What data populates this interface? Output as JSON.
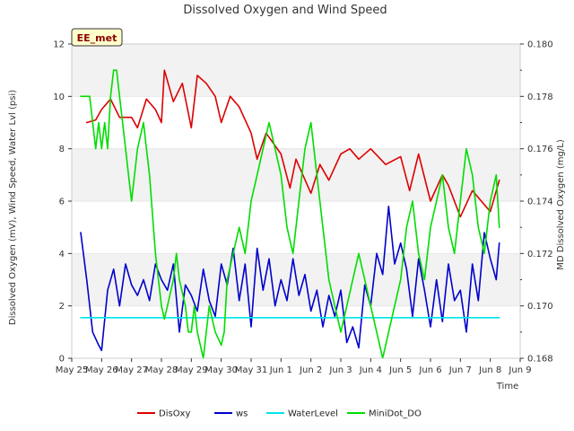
{
  "chart_data": {
    "type": "line",
    "title": "Dissolved Oxygen and Wind Speed",
    "xlabel": "Time",
    "ylabel_left": "Dissolved Oxygen (mV), Wind Speed, Water Lvl (psi)",
    "ylabel_right": "MD Dissolved Oxygen (mg/L)",
    "badge": "EE_met",
    "xlim": [
      0,
      15
    ],
    "x_tick_values": [
      0,
      1,
      2,
      3,
      4,
      5,
      6,
      7,
      8,
      9,
      10,
      11,
      12,
      13,
      14,
      15
    ],
    "x_tick_labels": [
      "May 25",
      "May 26",
      "May 27",
      "May 28",
      "May 29",
      "May 30",
      "May 31",
      "Jun 1",
      "Jun 2",
      "Jun 3",
      "Jun 4",
      "Jun 5",
      "Jun 6",
      "Jun 7",
      "Jun 8",
      "Jun 9"
    ],
    "ylim_left": [
      0,
      12
    ],
    "y_ticks_left": [
      "0",
      "2",
      "4",
      "6",
      "8",
      "10",
      "12"
    ],
    "ylim_right": [
      0.168,
      0.18
    ],
    "y_ticks_right": [
      "0.168",
      "0.170",
      "0.172",
      "0.174",
      "0.176",
      "0.178",
      "0.180"
    ],
    "bands": [
      [
        2,
        4
      ],
      [
        6,
        8
      ],
      [
        10,
        12
      ]
    ],
    "legend_placement": "bottom",
    "series": [
      {
        "name": "DisOxy",
        "color": "#dd0000",
        "axis": "left",
        "x": [
          0.5,
          0.8,
          1.0,
          1.3,
          1.6,
          2.0,
          2.2,
          2.5,
          2.8,
          3.0,
          3.1,
          3.4,
          3.7,
          4.0,
          4.2,
          4.5,
          4.8,
          5.0,
          5.3,
          5.6,
          6.0,
          6.2,
          6.5,
          7.0,
          7.3,
          7.5,
          8.0,
          8.3,
          8.6,
          9.0,
          9.3,
          9.6,
          10.0,
          10.5,
          11.0,
          11.3,
          11.6,
          12.0,
          12.4,
          12.6,
          13.0,
          13.4,
          13.7,
          14.0,
          14.3
        ],
        "y": [
          9.0,
          9.1,
          9.5,
          9.9,
          9.2,
          9.2,
          8.8,
          9.9,
          9.5,
          9.0,
          11.0,
          9.8,
          10.5,
          8.8,
          10.8,
          10.5,
          10.0,
          9.0,
          10.0,
          9.6,
          8.6,
          7.6,
          8.6,
          7.8,
          6.5,
          7.6,
          6.3,
          7.4,
          6.8,
          7.8,
          8.0,
          7.6,
          8.0,
          7.4,
          7.7,
          6.4,
          7.8,
          6.0,
          7.0,
          6.6,
          5.4,
          6.4,
          6.0,
          5.6,
          6.8
        ]
      },
      {
        "name": "ws",
        "color": "#0000cc",
        "axis": "left",
        "x": [
          0.3,
          0.5,
          0.7,
          0.9,
          1.0,
          1.2,
          1.4,
          1.6,
          1.8,
          2.0,
          2.2,
          2.4,
          2.6,
          2.8,
          3.0,
          3.2,
          3.4,
          3.6,
          3.8,
          4.0,
          4.2,
          4.4,
          4.6,
          4.8,
          5.0,
          5.2,
          5.4,
          5.6,
          5.8,
          6.0,
          6.2,
          6.4,
          6.6,
          6.8,
          7.0,
          7.2,
          7.4,
          7.6,
          7.8,
          8.0,
          8.2,
          8.4,
          8.6,
          8.8,
          9.0,
          9.2,
          9.4,
          9.6,
          9.8,
          10.0,
          10.2,
          10.4,
          10.6,
          10.8,
          11.0,
          11.2,
          11.4,
          11.6,
          11.8,
          12.0,
          12.2,
          12.4,
          12.6,
          12.8,
          13.0,
          13.2,
          13.4,
          13.6,
          13.8,
          14.0,
          14.2,
          14.3
        ],
        "y": [
          4.8,
          3.0,
          1.0,
          0.5,
          0.3,
          2.6,
          3.4,
          2.0,
          3.6,
          2.8,
          2.4,
          3.0,
          2.2,
          3.6,
          3.0,
          2.6,
          3.6,
          1.0,
          2.8,
          2.4,
          1.8,
          3.4,
          2.2,
          1.6,
          3.6,
          2.8,
          4.2,
          2.2,
          3.6,
          1.2,
          4.2,
          2.6,
          3.8,
          2.0,
          3.0,
          2.2,
          3.8,
          2.4,
          3.2,
          1.8,
          2.6,
          1.2,
          2.4,
          1.6,
          2.6,
          0.6,
          1.2,
          0.4,
          2.8,
          2.0,
          4.0,
          3.2,
          5.8,
          3.6,
          4.4,
          3.4,
          1.6,
          3.8,
          2.6,
          1.2,
          3.0,
          1.4,
          3.6,
          2.2,
          2.6,
          1.0,
          3.6,
          2.2,
          4.8,
          3.8,
          3.0,
          4.4
        ]
      },
      {
        "name": "WaterLevel",
        "color": "#00e5ee",
        "axis": "left",
        "x": [
          0.3,
          14.3
        ],
        "y": [
          1.55,
          1.55
        ]
      },
      {
        "name": "MiniDot_DO",
        "color": "#00dd00",
        "axis": "left",
        "x": [
          0.3,
          0.6,
          0.8,
          0.9,
          1.0,
          1.1,
          1.2,
          1.3,
          1.4,
          1.5,
          1.6,
          1.7,
          1.8,
          1.9,
          2.0,
          2.1,
          2.2,
          2.4,
          2.5,
          2.6,
          2.8,
          3.0,
          3.1,
          3.2,
          3.4,
          3.5,
          3.6,
          3.8,
          3.9,
          4.0,
          4.1,
          4.2,
          4.4,
          4.5,
          4.6,
          4.8,
          5.0,
          5.1,
          5.2,
          5.4,
          5.6,
          5.8,
          6.0,
          6.2,
          6.4,
          6.6,
          6.8,
          7.0,
          7.2,
          7.4,
          7.6,
          7.8,
          8.0,
          8.2,
          8.4,
          8.6,
          8.8,
          9.0,
          9.2,
          9.4,
          9.6,
          9.8,
          10.0,
          10.2,
          10.4,
          10.6,
          10.8,
          11.0,
          11.2,
          11.4,
          11.6,
          11.8,
          12.0,
          12.2,
          12.4,
          12.6,
          12.8,
          13.0,
          13.2,
          13.4,
          13.6,
          13.8,
          14.0,
          14.2,
          14.3
        ],
        "y": [
          10.0,
          10.0,
          8.0,
          9.0,
          8.0,
          9.0,
          8.0,
          10.0,
          11.0,
          11.0,
          10.0,
          9.0,
          8.0,
          7.0,
          6.0,
          7.0,
          8.0,
          9.0,
          8.0,
          7.0,
          4.0,
          2.0,
          1.5,
          2.0,
          3.0,
          4.0,
          3.0,
          2.0,
          1.0,
          1.0,
          2.0,
          1.0,
          0.0,
          1.0,
          2.0,
          1.0,
          0.5,
          1.0,
          3.0,
          4.0,
          5.0,
          4.0,
          6.0,
          7.0,
          8.0,
          9.0,
          8.0,
          7.0,
          5.0,
          4.0,
          6.0,
          8.0,
          9.0,
          7.0,
          5.0,
          3.0,
          2.0,
          1.0,
          2.0,
          3.0,
          4.0,
          3.0,
          2.0,
          1.0,
          0.0,
          1.0,
          2.0,
          3.0,
          5.0,
          6.0,
          4.0,
          3.0,
          5.0,
          6.0,
          7.0,
          5.0,
          4.0,
          6.0,
          8.0,
          7.0,
          5.0,
          4.0,
          6.0,
          7.0,
          5.0
        ]
      }
    ]
  }
}
